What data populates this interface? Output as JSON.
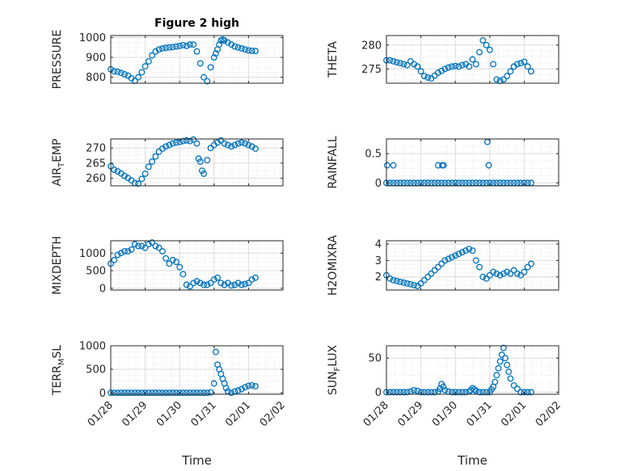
{
  "title": "Figure 2 high",
  "xlabel": "Time",
  "xticks": [
    "01/28",
    "01/29",
    "01/30",
    "01/31",
    "02/01",
    "02/02"
  ],
  "colors": {
    "marker": "#0072BD",
    "grid": "#dcdcdc",
    "axis": "#262626"
  },
  "chart_data": [
    {
      "id": "pressure",
      "type": "scatter",
      "ylabel": "PRESSURE",
      "yticks": [
        "800",
        "900",
        "1000"
      ],
      "ylim": [
        770,
        1010
      ],
      "x": [
        0,
        0.1,
        0.2,
        0.3,
        0.4,
        0.5,
        0.6,
        0.7,
        0.8,
        0.9,
        1,
        1.1,
        1.2,
        1.3,
        1.4,
        1.5,
        1.6,
        1.7,
        1.8,
        1.9,
        2,
        2.1,
        2.2,
        2.3,
        2.4,
        2.5,
        2.6,
        2.7,
        2.8,
        2.9,
        3,
        3.05,
        3.1,
        3.15,
        3.2,
        3.25,
        3.3,
        3.4,
        3.5,
        3.6,
        3.7,
        3.8,
        3.9,
        4,
        4.1,
        4.2
      ],
      "y": [
        840,
        830,
        828,
        822,
        815,
        808,
        795,
        782,
        800,
        825,
        855,
        880,
        910,
        930,
        940,
        945,
        948,
        950,
        952,
        955,
        958,
        962,
        958,
        965,
        965,
        930,
        870,
        800,
        780,
        850,
        900,
        920,
        940,
        965,
        985,
        990,
        985,
        975,
        965,
        955,
        950,
        945,
        940,
        935,
        933,
        932
      ]
    },
    {
      "id": "theta",
      "type": "scatter",
      "ylabel": "THETA",
      "yticks": [
        "275",
        "280"
      ],
      "ylim": [
        272,
        282
      ],
      "x": [
        0,
        0.1,
        0.2,
        0.3,
        0.4,
        0.5,
        0.6,
        0.7,
        0.8,
        0.9,
        1,
        1.1,
        1.2,
        1.3,
        1.4,
        1.5,
        1.6,
        1.7,
        1.8,
        1.9,
        2,
        2.1,
        2.2,
        2.3,
        2.4,
        2.5,
        2.6,
        2.7,
        2.8,
        2.9,
        3,
        3.1,
        3.2,
        3.3,
        3.4,
        3.5,
        3.6,
        3.7,
        3.8,
        3.9,
        4,
        4.1,
        4.2
      ],
      "y": [
        276.8,
        276.8,
        276.6,
        276.4,
        276.2,
        276.0,
        275.8,
        276.6,
        276.0,
        275.5,
        274.5,
        273.5,
        273.2,
        273.0,
        273.6,
        274.2,
        274.6,
        275.0,
        275.3,
        275.5,
        275.6,
        275.5,
        275.8,
        276.0,
        275.5,
        277.0,
        276.0,
        278.5,
        281.0,
        280.0,
        279.0,
        276.0,
        272.8,
        272.5,
        272.8,
        273.5,
        274.5,
        275.5,
        276.0,
        276.2,
        276.5,
        275.5,
        274.5
      ]
    },
    {
      "id": "air_temp",
      "type": "scatter",
      "ylabel": "AIR_TEMP",
      "ylabel_main": "AIR",
      "ylabel_sub": "T",
      "ylabel_rest": "EMP",
      "yticks": [
        "260",
        "265",
        "270"
      ],
      "ylim": [
        257.5,
        273
      ],
      "x": [
        0,
        0.1,
        0.2,
        0.3,
        0.4,
        0.5,
        0.6,
        0.7,
        0.8,
        0.9,
        1,
        1.1,
        1.2,
        1.3,
        1.4,
        1.5,
        1.6,
        1.7,
        1.8,
        1.9,
        2,
        2.1,
        2.2,
        2.3,
        2.4,
        2.5,
        2.55,
        2.6,
        2.65,
        2.7,
        2.8,
        2.9,
        3,
        3.1,
        3.2,
        3.3,
        3.4,
        3.5,
        3.6,
        3.7,
        3.8,
        3.9,
        4,
        4.1,
        4.2
      ],
      "y": [
        264,
        262.8,
        262.3,
        261.6,
        260.8,
        260.1,
        259.3,
        258.4,
        258.2,
        259.8,
        261.5,
        263.8,
        265.5,
        267.2,
        268.8,
        269.8,
        270.5,
        271,
        271.5,
        271.8,
        272,
        272.3,
        272.5,
        272.3,
        272.8,
        271.5,
        266.5,
        265.5,
        262.5,
        261.5,
        266,
        270,
        271,
        271.8,
        272.5,
        271.5,
        271,
        270.5,
        271,
        271.5,
        271.8,
        271.5,
        271,
        270.5,
        269.8
      ]
    },
    {
      "id": "rainfall",
      "type": "scatter",
      "ylabel": "RAINFALL",
      "yticks": [
        "0",
        "0.5"
      ],
      "ylim": [
        -0.05,
        0.75
      ],
      "x": [
        0,
        0.1,
        0.2,
        0.3,
        0.4,
        0.5,
        0.6,
        0.7,
        0.8,
        0.9,
        1,
        1.1,
        1.2,
        1.3,
        1.4,
        1.5,
        1.6,
        1.7,
        1.8,
        1.9,
        2,
        2.1,
        2.2,
        2.3,
        2.4,
        2.5,
        2.6,
        2.7,
        2.8,
        2.9,
        3,
        3.1,
        3.2,
        3.3,
        3.4,
        3.5,
        3.6,
        3.7,
        3.8,
        3.9,
        4,
        4.1,
        4.2,
        0.02,
        0.2,
        1.5,
        1.62,
        1.66,
        2.93,
        2.97
      ],
      "y": [
        0,
        0,
        0,
        0,
        0,
        0,
        0,
        0,
        0,
        0,
        0,
        0,
        0,
        0,
        0,
        0,
        0,
        0,
        0,
        0,
        0,
        0,
        0,
        0,
        0,
        0,
        0,
        0,
        0,
        0,
        0,
        0,
        0,
        0,
        0,
        0,
        0,
        0,
        0,
        0,
        0,
        0,
        0,
        0.3,
        0.3,
        0.3,
        0.3,
        0.3,
        0.7,
        0.3
      ]
    },
    {
      "id": "mixdepth",
      "type": "scatter",
      "ylabel": "MIXDEPTH",
      "yticks": [
        "0",
        "500",
        "1000"
      ],
      "ylim": [
        -50,
        1350
      ],
      "x": [
        0,
        0.1,
        0.2,
        0.3,
        0.4,
        0.5,
        0.6,
        0.7,
        0.8,
        0.9,
        1,
        1.1,
        1.2,
        1.3,
        1.4,
        1.5,
        1.6,
        1.7,
        1.8,
        1.9,
        2,
        2.1,
        2.2,
        2.3,
        2.4,
        2.5,
        2.6,
        2.7,
        2.8,
        2.9,
        3,
        3.1,
        3.2,
        3.3,
        3.4,
        3.5,
        3.6,
        3.7,
        3.8,
        3.9,
        4,
        4.1,
        4.2
      ],
      "y": [
        700,
        800,
        950,
        1000,
        1050,
        1050,
        1100,
        1250,
        1200,
        1200,
        1150,
        1250,
        1300,
        1200,
        1150,
        1050,
        850,
        700,
        800,
        750,
        600,
        400,
        100,
        50,
        150,
        200,
        150,
        100,
        100,
        150,
        250,
        300,
        150,
        100,
        150,
        80,
        100,
        150,
        100,
        120,
        150,
        250,
        300
      ]
    },
    {
      "id": "h2omixra",
      "type": "scatter",
      "ylabel": "H2OMIXRA",
      "yticks": [
        "2",
        "3",
        "4"
      ],
      "ylim": [
        1.2,
        4.2
      ],
      "x": [
        0,
        0.1,
        0.2,
        0.3,
        0.4,
        0.5,
        0.6,
        0.7,
        0.8,
        0.9,
        1,
        1.1,
        1.2,
        1.3,
        1.4,
        1.5,
        1.6,
        1.7,
        1.8,
        1.9,
        2,
        2.1,
        2.2,
        2.3,
        2.4,
        2.5,
        2.6,
        2.7,
        2.8,
        2.9,
        3,
        3.1,
        3.2,
        3.3,
        3.4,
        3.5,
        3.6,
        3.7,
        3.8,
        3.9,
        4,
        4.1,
        4.2
      ],
      "y": [
        2.1,
        1.9,
        1.8,
        1.75,
        1.7,
        1.65,
        1.6,
        1.55,
        1.5,
        1.45,
        1.6,
        1.8,
        2.0,
        2.2,
        2.4,
        2.6,
        2.8,
        3.0,
        3.1,
        3.2,
        3.3,
        3.4,
        3.5,
        3.6,
        3.7,
        3.6,
        3.0,
        2.6,
        2.0,
        1.9,
        2.1,
        2.3,
        2.2,
        2.1,
        2.2,
        2.3,
        2.2,
        2.4,
        2.2,
        2.1,
        2.3,
        2.6,
        2.8
      ]
    },
    {
      "id": "terr_msl",
      "type": "scatter",
      "ylabel": "TERR_MSL",
      "ylabel_main": "TERR",
      "ylabel_sub": "M",
      "ylabel_rest": "SL",
      "yticks": [
        "0",
        "500",
        "1000"
      ],
      "ylim": [
        -30,
        1000
      ],
      "x": [
        0,
        0.1,
        0.2,
        0.3,
        0.4,
        0.5,
        0.6,
        0.7,
        0.8,
        0.9,
        1,
        1.1,
        1.2,
        1.3,
        1.4,
        1.5,
        1.6,
        1.7,
        1.8,
        1.9,
        2,
        2.1,
        2.2,
        2.3,
        2.4,
        2.5,
        2.6,
        2.7,
        2.8,
        2.9,
        3,
        3.05,
        3.1,
        3.15,
        3.2,
        3.25,
        3.3,
        3.35,
        3.4,
        3.5,
        3.6,
        3.7,
        3.8,
        3.9,
        4,
        4.1,
        4.2
      ],
      "y": [
        0,
        0,
        0,
        0,
        0,
        0,
        0,
        0,
        0,
        0,
        0,
        0,
        0,
        0,
        0,
        0,
        0,
        0,
        0,
        0,
        0,
        0,
        0,
        0,
        0,
        0,
        0,
        0,
        0,
        10,
        200,
        870,
        600,
        500,
        400,
        300,
        200,
        100,
        30,
        0,
        30,
        50,
        80,
        120,
        150,
        160,
        140
      ]
    },
    {
      "id": "sun_flux",
      "type": "scatter",
      "ylabel": "SUN_FLUX",
      "ylabel_main": "SUN",
      "ylabel_sub": "F",
      "ylabel_rest": "LUX",
      "yticks": [
        "0",
        "50"
      ],
      "ylim": [
        -3,
        68
      ],
      "x": [
        0,
        0.1,
        0.2,
        0.3,
        0.4,
        0.5,
        0.6,
        0.7,
        0.8,
        0.9,
        1,
        1.1,
        1.2,
        1.3,
        1.4,
        1.5,
        1.55,
        1.6,
        1.65,
        1.7,
        1.8,
        1.9,
        2,
        2.1,
        2.2,
        2.3,
        2.4,
        2.45,
        2.5,
        2.55,
        2.6,
        2.7,
        2.8,
        2.9,
        3,
        3.05,
        3.1,
        3.15,
        3.2,
        3.25,
        3.3,
        3.35,
        3.4,
        3.45,
        3.5,
        3.55,
        3.6,
        3.7,
        3.8,
        3.9,
        4.0,
        4.1,
        4.2
      ],
      "y": [
        0,
        0,
        0,
        0,
        0,
        0,
        0,
        1,
        3,
        2,
        0,
        0,
        0,
        0,
        0,
        1,
        5,
        12,
        8,
        3,
        1,
        0,
        0,
        0,
        0,
        0,
        1,
        3,
        6,
        4,
        2,
        0,
        0,
        0,
        0,
        4,
        8,
        15,
        25,
        35,
        45,
        55,
        65,
        50,
        40,
        30,
        20,
        10,
        5,
        0,
        0,
        0,
        0
      ]
    }
  ]
}
